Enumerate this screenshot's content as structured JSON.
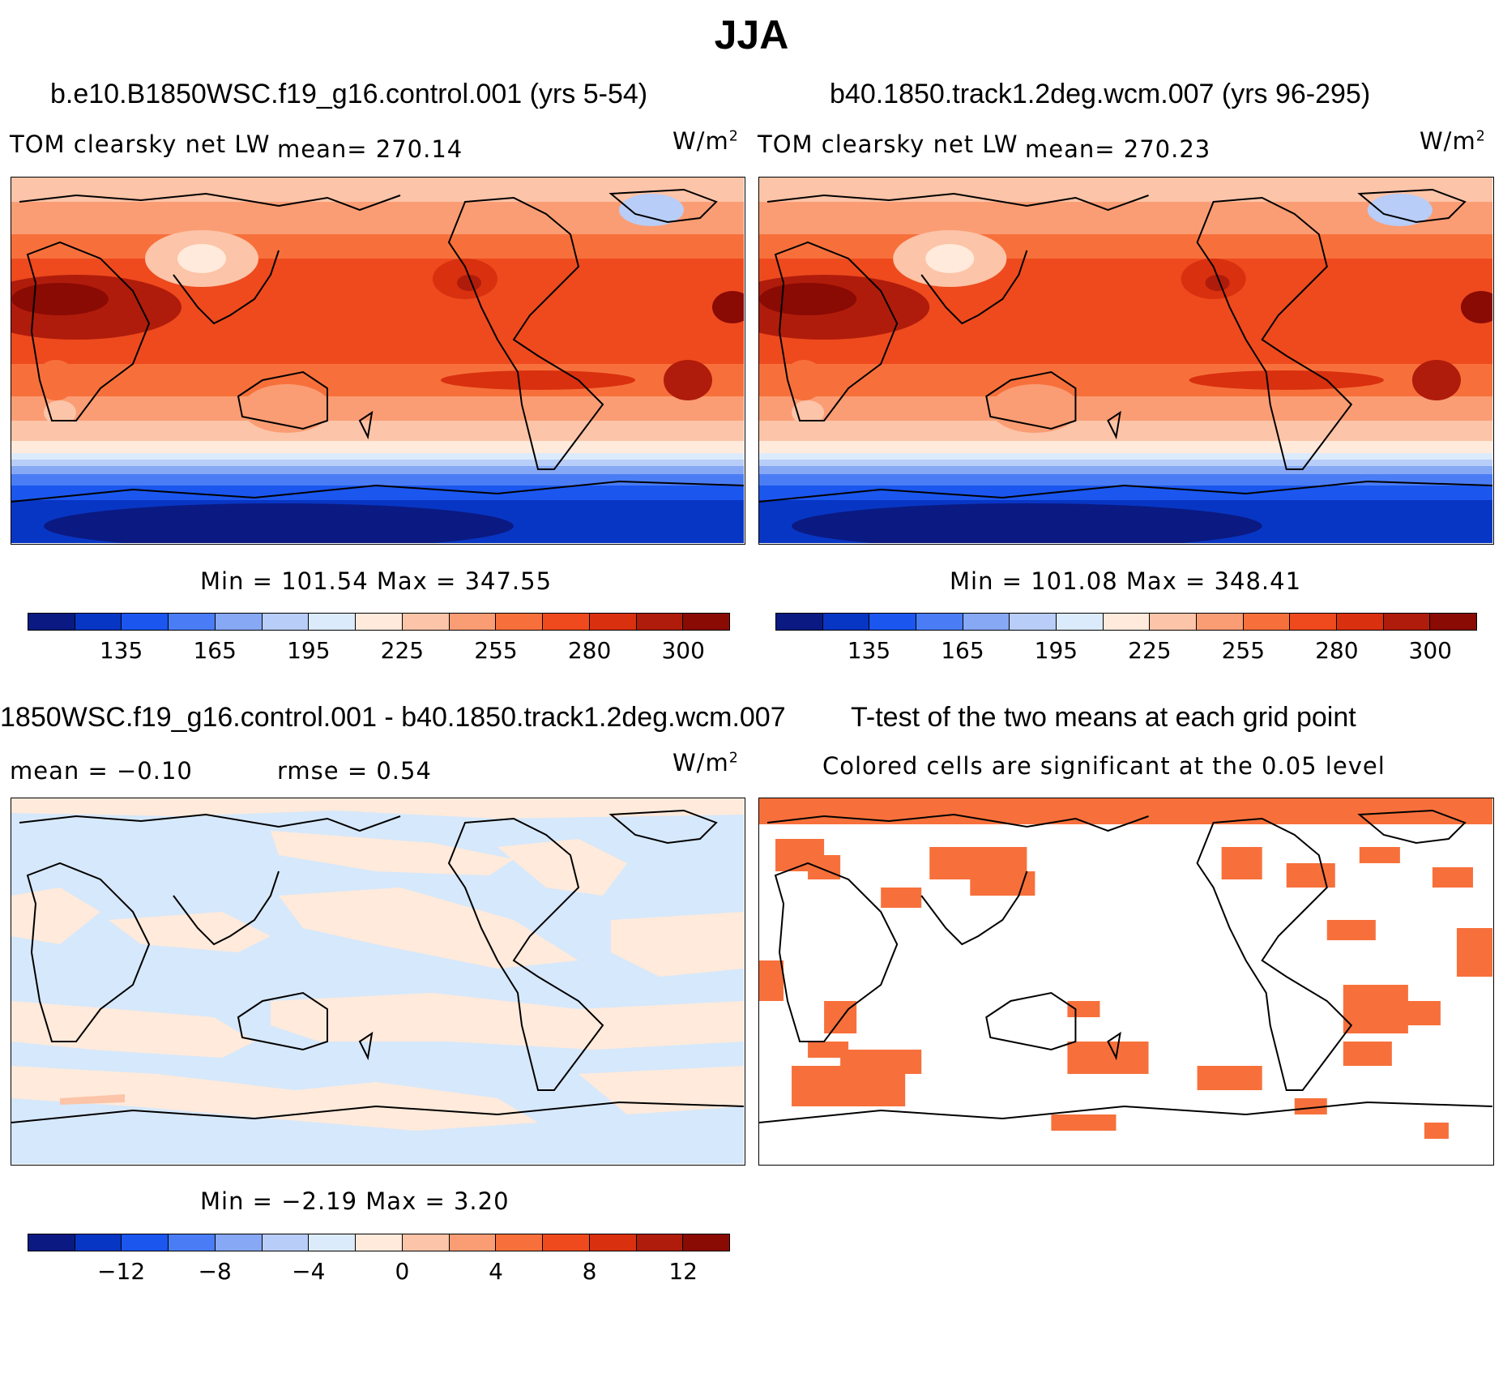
{
  "title": "JJA",
  "panels": {
    "p1": {
      "title": "b.e10.B1850WSC.f19_g16.control.001 (yrs 5-54)",
      "variable": "TOM clearsky net LW",
      "mean_label": "mean=",
      "mean": "270.14",
      "units_base": "W/m",
      "units_exp": "2",
      "minmax": "Min = 101.54 Max = 347.55"
    },
    "p2": {
      "title": "b40.1850.track1.2deg.wcm.007 (yrs 96-295)",
      "variable": "TOM clearsky net LW",
      "mean_label": "mean=",
      "mean": "270.23",
      "units_base": "W/m",
      "units_exp": "2",
      "minmax": "Min = 101.08 Max = 348.41"
    },
    "p3": {
      "title": "1850WSC.f19_g16.control.001 - b40.1850.track1.2deg.wcm.007",
      "mean_text": "mean =  −0.10",
      "rmse_text": "rmse =    0.54",
      "units_base": "W/m",
      "units_exp": "2",
      "minmax": "Min =  −2.19 Max =    3.20"
    },
    "p4": {
      "title": "T-test of the two means at each grid point",
      "subtitle": "Colored cells are significant at the 0.05 level"
    }
  },
  "colorbars": {
    "absolute": {
      "colors": [
        "#0a1a82",
        "#0836c4",
        "#1b56ee",
        "#4a7df5",
        "#86a8f5",
        "#b8cdf7",
        "#dcebfb",
        "#ffeadb",
        "#fcc4a8",
        "#fb9d74",
        "#f7703b",
        "#ee4a1e",
        "#d9300f",
        "#b01c0b",
        "#8a0a04"
      ],
      "tick_labels": [
        "135",
        "165",
        "195",
        "225",
        "255",
        "280",
        "300"
      ]
    },
    "difference": {
      "colors": [
        "#0a1a82",
        "#0836c4",
        "#1b56ee",
        "#4a7df5",
        "#86a8f5",
        "#b8cdf7",
        "#dcebfb",
        "#ffeadb",
        "#fcc4a8",
        "#fb9d74",
        "#f7703b",
        "#ee4a1e",
        "#d9300f",
        "#b01c0b",
        "#8a0a04"
      ],
      "tick_labels": [
        "−12",
        "−8",
        "−4",
        "0",
        "4",
        "8",
        "12"
      ]
    }
  },
  "colors": {
    "significant": "#f7703b",
    "diff_positive": "#ffeadb",
    "diff_negative": "#d6e8fb"
  }
}
